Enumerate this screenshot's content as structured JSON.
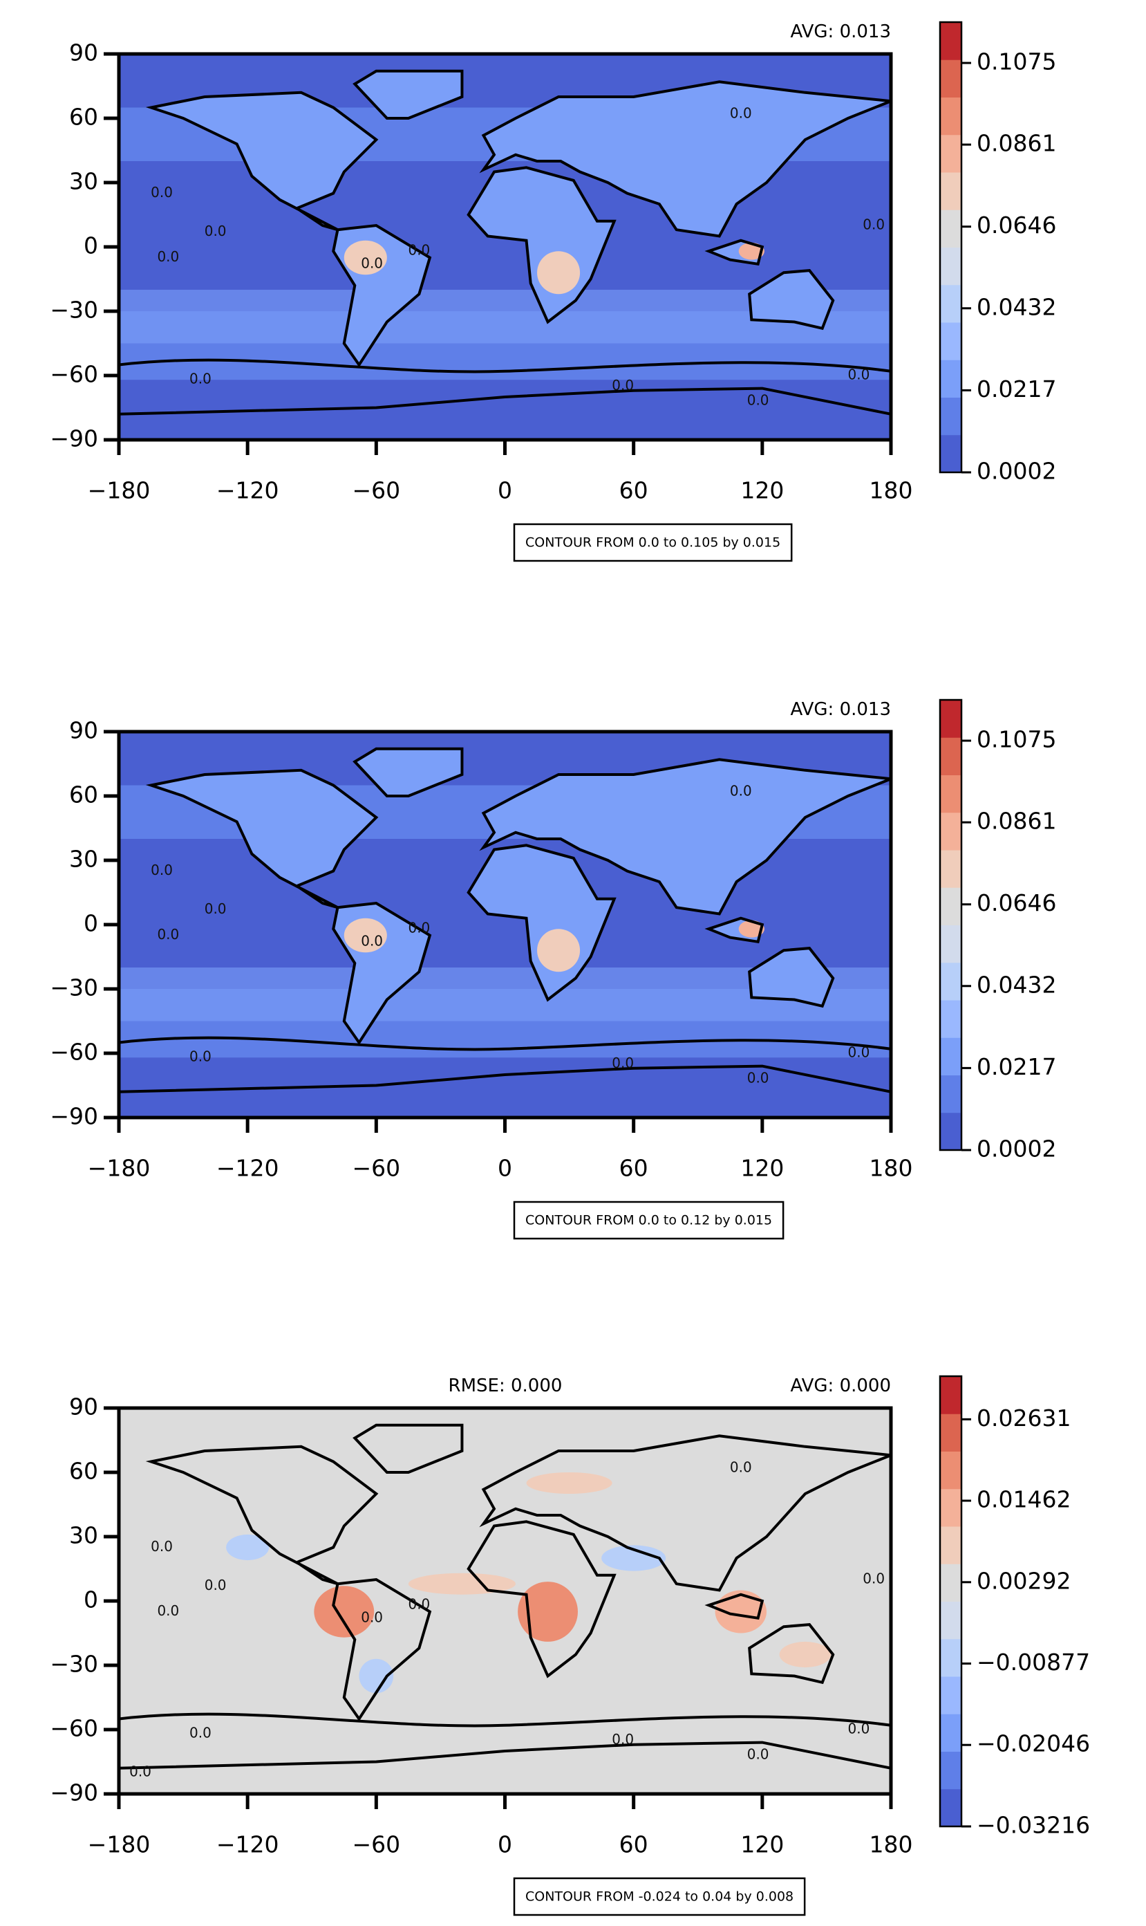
{
  "chart_data": [
    {
      "type": "contour",
      "annotations": {
        "avg": "AVG: 0.013"
      },
      "contour_note": "CONTOUR FROM 0.0 to 0.105 by 0.015",
      "contour_labels": [
        "0.0",
        "0.0",
        "0.0",
        "0.0",
        "0.0",
        "0.0",
        "0.0",
        "0.0",
        "0.0",
        "0.0",
        "0.0"
      ],
      "xlim": [
        -180,
        180
      ],
      "ylim": [
        -90,
        90
      ],
      "xticks": [
        {
          "value": -180,
          "label": "−180"
        },
        {
          "value": -120,
          "label": "−120"
        },
        {
          "value": -60,
          "label": "−60"
        },
        0,
        60,
        120,
        180
      ],
      "yticks": [
        {
          "value": -90,
          "label": "−90"
        },
        {
          "value": -60,
          "label": "−60"
        },
        {
          "value": -30,
          "label": "−30"
        },
        0,
        30,
        60,
        90
      ],
      "colorbar": {
        "clim": [
          0.0002,
          0.1182
        ],
        "ticks": [
          0.0002,
          0.0217,
          0.0432,
          0.0646,
          0.0861,
          0.1075
        ],
        "colors": [
          "#4a5fd1",
          "#5f7fe8",
          "#7b9ff9",
          "#9ab8fe",
          "#b7cff9",
          "#d2dbec",
          "#dcdcdc",
          "#f0cdbb",
          "#f4b199",
          "#ec8e73",
          "#dc6550",
          "#c0282d"
        ]
      }
    },
    {
      "type": "contour",
      "annotations": {
        "avg": "AVG: 0.013"
      },
      "contour_note": "CONTOUR FROM 0.0 to 0.12 by 0.015",
      "contour_labels": [
        "0.0",
        "0.0",
        "0.0",
        "0.0",
        "0.0",
        "0.0",
        "0.0",
        "0.0",
        "0.0",
        "0.0"
      ],
      "xlim": [
        -180,
        180
      ],
      "ylim": [
        -90,
        90
      ],
      "xticks": [
        {
          "value": -180,
          "label": "−180"
        },
        {
          "value": -120,
          "label": "−120"
        },
        {
          "value": -60,
          "label": "−60"
        },
        0,
        60,
        120,
        180
      ],
      "yticks": [
        {
          "value": -90,
          "label": "−90"
        },
        {
          "value": -60,
          "label": "−60"
        },
        {
          "value": -30,
          "label": "−30"
        },
        0,
        30,
        60,
        90
      ],
      "colorbar": {
        "clim": [
          0.0002,
          0.1182
        ],
        "ticks": [
          0.0002,
          0.0217,
          0.0432,
          0.0646,
          0.0861,
          0.1075
        ],
        "colors": [
          "#4a5fd1",
          "#5f7fe8",
          "#7b9ff9",
          "#9ab8fe",
          "#b7cff9",
          "#d2dbec",
          "#dcdcdc",
          "#f0cdbb",
          "#f4b199",
          "#ec8e73",
          "#dc6550",
          "#c0282d"
        ]
      }
    },
    {
      "type": "contour",
      "annotations": {
        "rmse": "RMSE: 0.000",
        "avg": "AVG: 0.000"
      },
      "contour_note": "CONTOUR FROM -0.024 to 0.04 by 0.008",
      "contour_labels": [
        "0.0",
        "0.0",
        "0.0",
        "0.0",
        "0.0",
        "0.0",
        "0.0",
        "0.0",
        "0.0",
        "0.0",
        "0.0",
        "0.0"
      ],
      "xlim": [
        -180,
        180
      ],
      "ylim": [
        -90,
        90
      ],
      "xticks": [
        {
          "value": -180,
          "label": "−180"
        },
        {
          "value": -120,
          "label": "−120"
        },
        {
          "value": -60,
          "label": "−60"
        },
        0,
        60,
        120,
        180
      ],
      "yticks": [
        {
          "value": -90,
          "label": "−90"
        },
        {
          "value": -60,
          "label": "−60"
        },
        {
          "value": -30,
          "label": "−30"
        },
        0,
        30,
        60,
        90
      ],
      "colorbar": {
        "clim": [
          -0.03216,
          0.0325
        ],
        "ticks": [
          {
            "value": -0.03216,
            "label": "−0.03216"
          },
          {
            "value": -0.02046,
            "label": "−0.02046"
          },
          {
            "value": -0.00877,
            "label": "−0.00877"
          },
          0.00292,
          0.01462,
          0.02631
        ],
        "colors": [
          "#4a5fd1",
          "#5f7fe8",
          "#7b9ff9",
          "#9ab8fe",
          "#b7cff9",
          "#d2dbec",
          "#dcdcdc",
          "#f0cdbb",
          "#f4b199",
          "#ec8e73",
          "#dc6550",
          "#c0282d"
        ]
      }
    }
  ]
}
